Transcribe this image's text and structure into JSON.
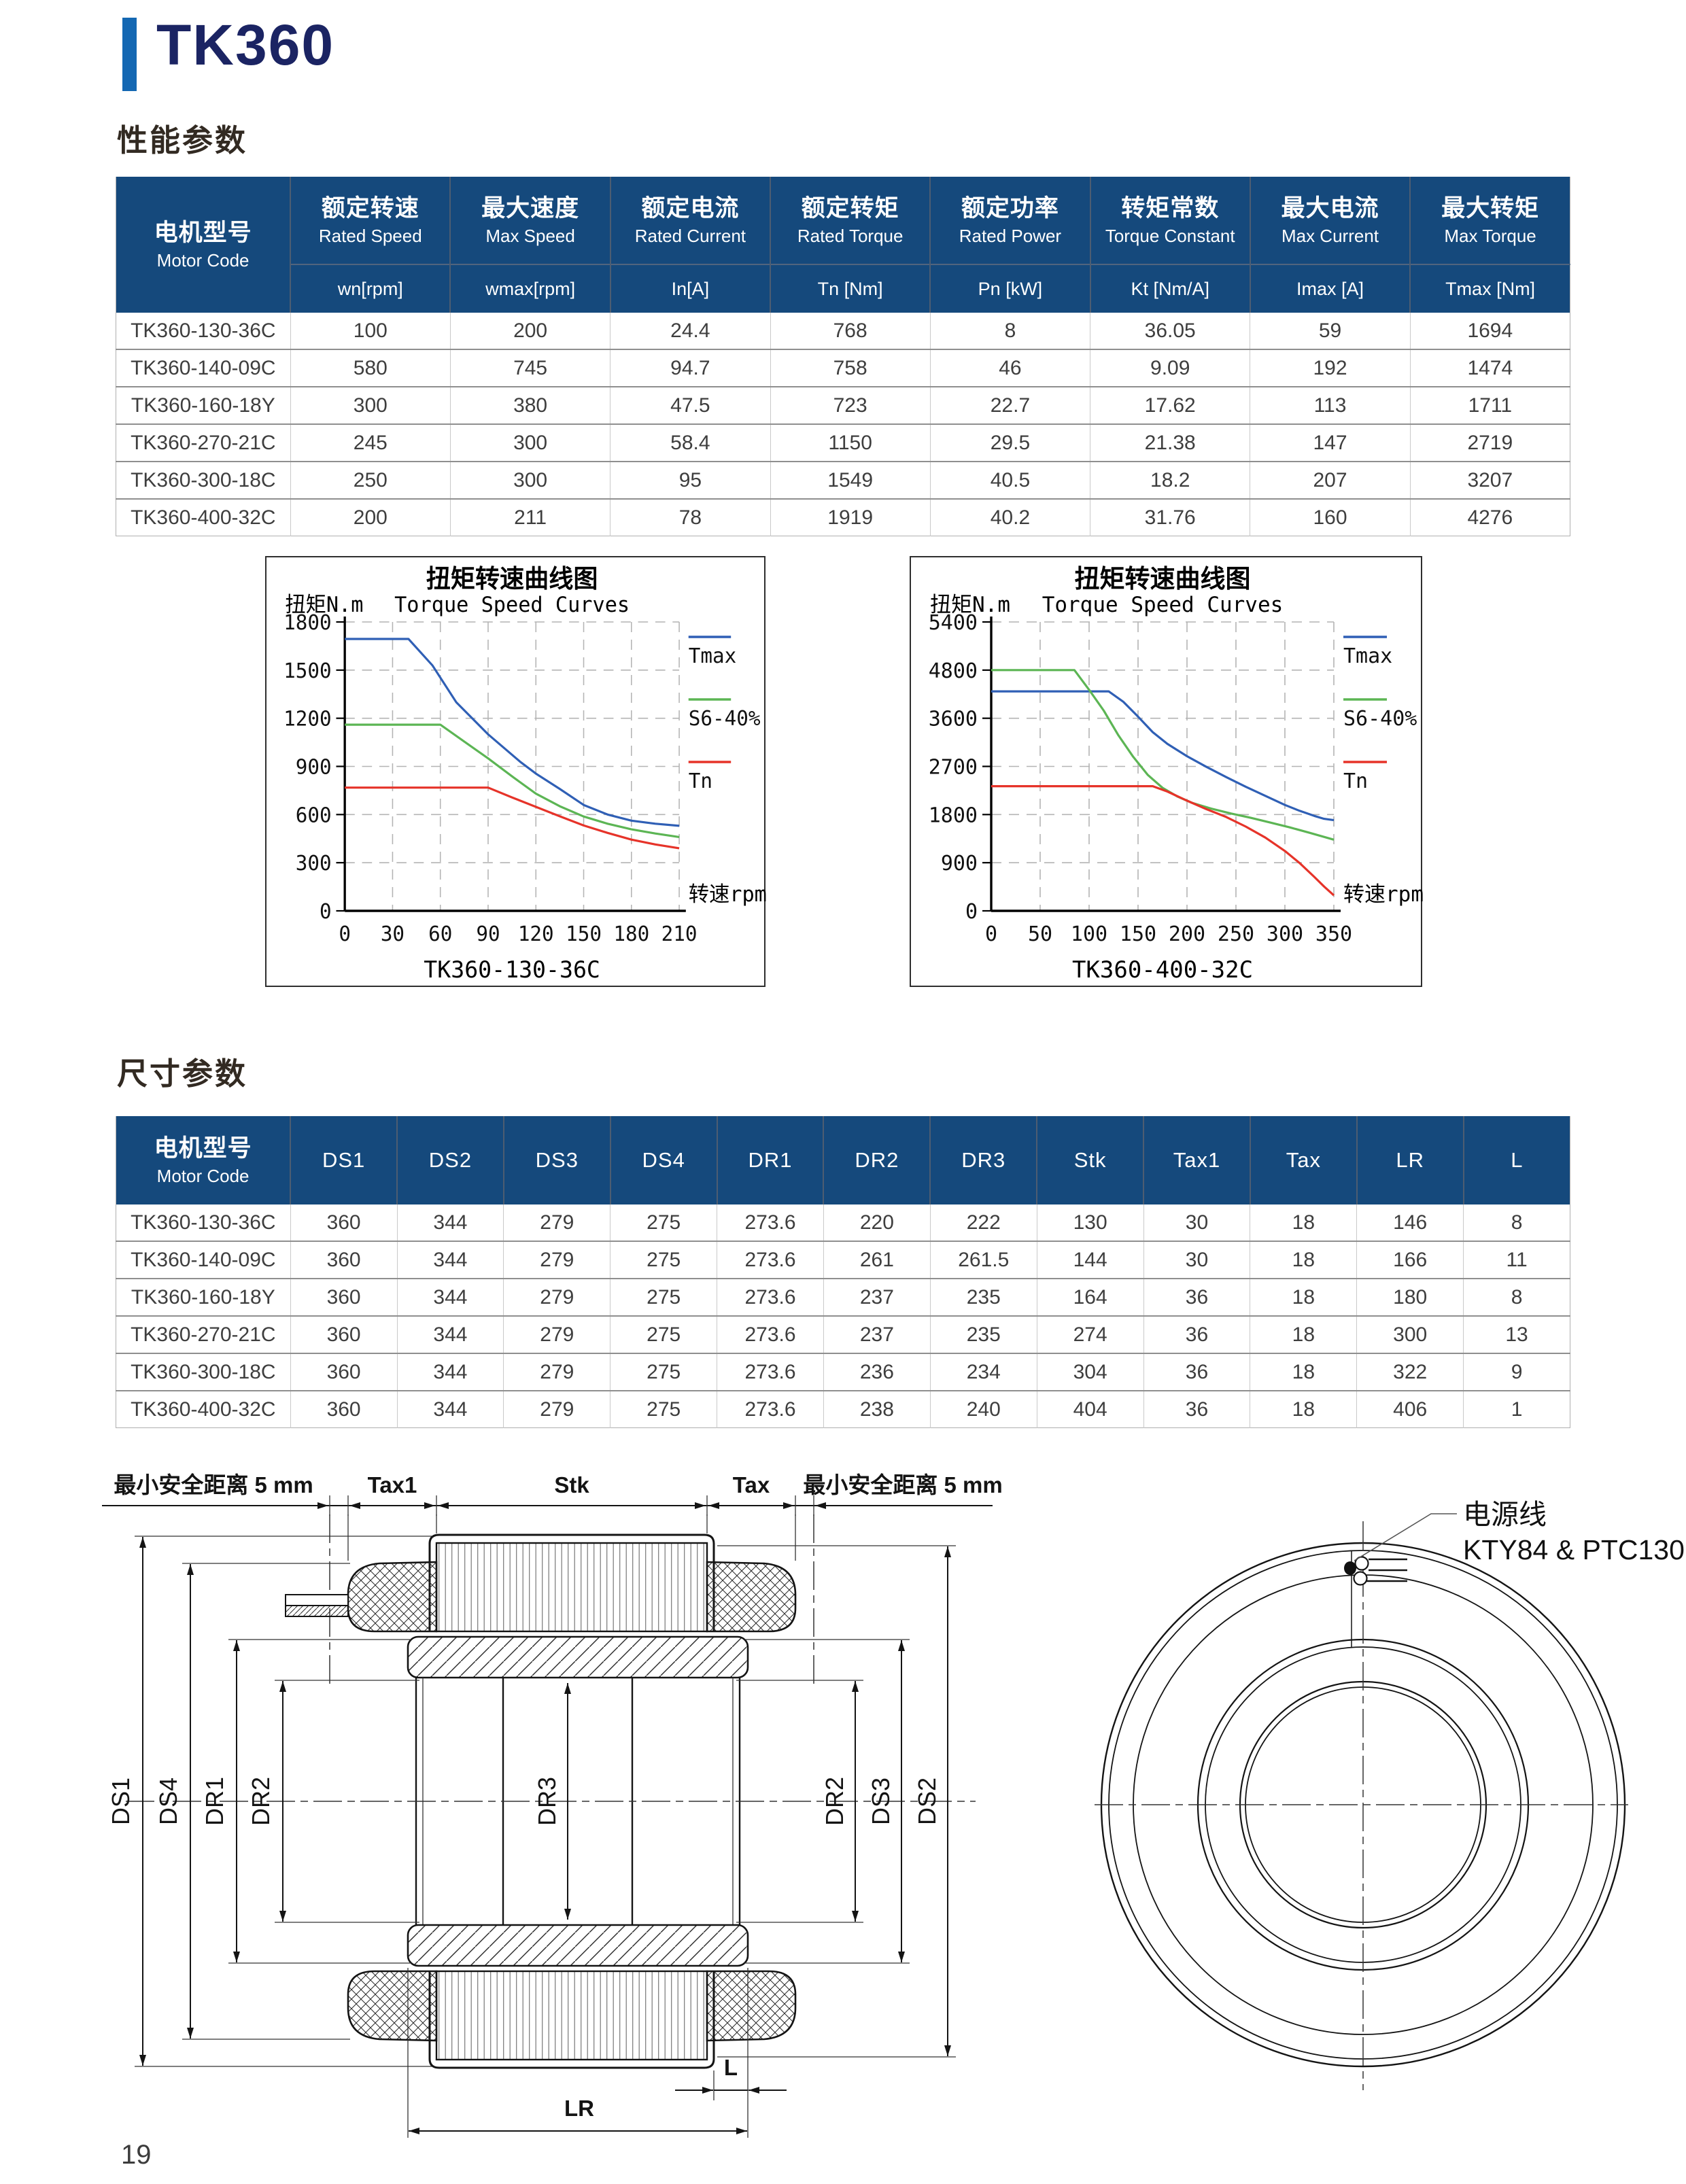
{
  "page": {
    "title": "TK360",
    "page_number": "19",
    "accent_color": "#1468b3",
    "header_bg": "#15497c",
    "sections": {
      "performance": "性能参数",
      "dimensions": "尺寸参数"
    }
  },
  "perf_table": {
    "motor_header": {
      "zh": "电机型号",
      "en": "Motor Code"
    },
    "cols": [
      {
        "zh": "额定转速",
        "en": "Rated Speed",
        "unit": "wn[rpm]"
      },
      {
        "zh": "最大速度",
        "en": "Max Speed",
        "unit": "wmax[rpm]"
      },
      {
        "zh": "额定电流",
        "en": "Rated Current",
        "unit": "In[A]"
      },
      {
        "zh": "额定转矩",
        "en": "Rated Torque",
        "unit": "Tn [Nm]"
      },
      {
        "zh": "额定功率",
        "en": "Rated Power",
        "unit": "Pn [kW]"
      },
      {
        "zh": "转矩常数",
        "en": "Torque Constant",
        "unit": "Kt [Nm/A]"
      },
      {
        "zh": "最大电流",
        "en": "Max Current",
        "unit": "Imax [A]"
      },
      {
        "zh": "最大转矩",
        "en": "Max Torque",
        "unit": "Tmax [Nm]"
      }
    ],
    "rows": [
      [
        "TK360-130-36C",
        "100",
        "200",
        "24.4",
        "768",
        "8",
        "36.05",
        "59",
        "1694"
      ],
      [
        "TK360-140-09C",
        "580",
        "745",
        "94.7",
        "758",
        "46",
        "9.09",
        "192",
        "1474"
      ],
      [
        "TK360-160-18Y",
        "300",
        "380",
        "47.5",
        "723",
        "22.7",
        "17.62",
        "113",
        "1711"
      ],
      [
        "TK360-270-21C",
        "245",
        "300",
        "58.4",
        "1150",
        "29.5",
        "21.38",
        "147",
        "2719"
      ],
      [
        "TK360-300-18C",
        "250",
        "300",
        "95",
        "1549",
        "40.5",
        "18.2",
        "207",
        "3207"
      ],
      [
        "TK360-400-32C",
        "200",
        "211",
        "78",
        "1919",
        "40.2",
        "31.76",
        "160",
        "4276"
      ]
    ]
  },
  "dim_table": {
    "motor_header": {
      "zh": "电机型号",
      "en": "Motor Code"
    },
    "cols": [
      "DS1",
      "DS2",
      "DS3",
      "DS4",
      "DR1",
      "DR2",
      "DR3",
      "Stk",
      "Tax1",
      "Tax",
      "LR",
      "L"
    ],
    "rows": [
      [
        "TK360-130-36C",
        "360",
        "344",
        "279",
        "275",
        "273.6",
        "220",
        "222",
        "130",
        "30",
        "18",
        "146",
        "8"
      ],
      [
        "TK360-140-09C",
        "360",
        "344",
        "279",
        "275",
        "273.6",
        "261",
        "261.5",
        "144",
        "30",
        "18",
        "166",
        "11"
      ],
      [
        "TK360-160-18Y",
        "360",
        "344",
        "279",
        "275",
        "273.6",
        "237",
        "235",
        "164",
        "36",
        "18",
        "180",
        "8"
      ],
      [
        "TK360-270-21C",
        "360",
        "344",
        "279",
        "275",
        "273.6",
        "237",
        "235",
        "274",
        "36",
        "18",
        "300",
        "13"
      ],
      [
        "TK360-300-18C",
        "360",
        "344",
        "279",
        "275",
        "273.6",
        "236",
        "234",
        "304",
        "36",
        "18",
        "322",
        "9"
      ],
      [
        "TK360-400-32C",
        "360",
        "344",
        "279",
        "275",
        "273.6",
        "238",
        "240",
        "404",
        "36",
        "18",
        "406",
        "1"
      ]
    ]
  },
  "chart_data": [
    {
      "type": "line",
      "title": "扭矩转速曲线图",
      "subtitle": "Torque Speed Curves",
      "ylabel": "扭矩N.m",
      "xlabel": "转速rpm",
      "caption": "TK360-130-36C",
      "legend_position": "right",
      "grid": true,
      "x_ticks": [
        0,
        30,
        60,
        90,
        120,
        150,
        180,
        210
      ],
      "y_ticks": [
        0,
        300,
        600,
        900,
        1200,
        1500,
        1800
      ],
      "ylim": [
        0,
        1800
      ],
      "series": [
        {
          "name": "Tmax",
          "color": "#2f5fb5",
          "points": [
            [
              0,
              1694
            ],
            [
              40,
              1694
            ],
            [
              55,
              1530
            ],
            [
              70,
              1300
            ],
            [
              90,
              1100
            ],
            [
              110,
              930
            ],
            [
              120,
              855
            ],
            [
              135,
              760
            ],
            [
              150,
              660
            ],
            [
              165,
              600
            ],
            [
              180,
              562
            ],
            [
              195,
              543
            ],
            [
              210,
              530
            ]
          ]
        },
        {
          "name": "S6-40%",
          "color": "#5cb554",
          "points": [
            [
              0,
              1160
            ],
            [
              60,
              1160
            ],
            [
              75,
              1055
            ],
            [
              90,
              950
            ],
            [
              105,
              838
            ],
            [
              120,
              730
            ],
            [
              135,
              652
            ],
            [
              150,
              588
            ],
            [
              165,
              543
            ],
            [
              180,
              508
            ],
            [
              195,
              482
            ],
            [
              210,
              460
            ]
          ]
        },
        {
          "name": "Tn",
          "color": "#e63329",
          "points": [
            [
              0,
              768
            ],
            [
              90,
              768
            ],
            [
              105,
              707
            ],
            [
              120,
              648
            ],
            [
              135,
              589
            ],
            [
              150,
              532
            ],
            [
              165,
              486
            ],
            [
              180,
              444
            ],
            [
              195,
              414
            ],
            [
              210,
              390
            ]
          ]
        }
      ]
    },
    {
      "type": "line",
      "title": "扭矩转速曲线图",
      "subtitle": "Torque Speed Curves",
      "ylabel": "扭矩N.m",
      "xlabel": "转速rpm",
      "caption": "TK360-400-32C",
      "legend_position": "right",
      "grid": true,
      "x_ticks": [
        0,
        50,
        100,
        150,
        200,
        250,
        300,
        350
      ],
      "y_ticks": [
        0,
        900,
        1800,
        2700,
        3600,
        4800,
        5400
      ],
      "ylim": [
        0,
        5400
      ],
      "series": [
        {
          "name": "Tmax",
          "color": "#2f5fb5",
          "points": [
            [
              0,
              4270
            ],
            [
              120,
              4270
            ],
            [
              135,
              4010
            ],
            [
              150,
              3640
            ],
            [
              165,
              3340
            ],
            [
              180,
              3120
            ],
            [
              200,
              2890
            ],
            [
              220,
              2690
            ],
            [
              240,
              2500
            ],
            [
              260,
              2320
            ],
            [
              280,
              2150
            ],
            [
              300,
              1980
            ],
            [
              315,
              1870
            ],
            [
              330,
              1775
            ],
            [
              340,
              1720
            ],
            [
              350,
              1695
            ]
          ]
        },
        {
          "name": "S6-40%",
          "color": "#5cb554",
          "points": [
            [
              0,
              4800
            ],
            [
              85,
              4800
            ],
            [
              100,
              4310
            ],
            [
              115,
              3790
            ],
            [
              130,
              3280
            ],
            [
              145,
              2880
            ],
            [
              160,
              2540
            ],
            [
              175,
              2300
            ],
            [
              190,
              2140
            ],
            [
              205,
              2020
            ],
            [
              225,
              1910
            ],
            [
              245,
              1820
            ],
            [
              265,
              1740
            ],
            [
              285,
              1650
            ],
            [
              305,
              1560
            ],
            [
              325,
              1460
            ],
            [
              350,
              1330
            ]
          ]
        },
        {
          "name": "Tn",
          "color": "#e63329",
          "points": [
            [
              0,
              2330
            ],
            [
              165,
              2330
            ],
            [
              180,
              2230
            ],
            [
              200,
              2060
            ],
            [
              220,
              1900
            ],
            [
              240,
              1755
            ],
            [
              260,
              1575
            ],
            [
              280,
              1370
            ],
            [
              300,
              1120
            ],
            [
              315,
              895
            ],
            [
              330,
              635
            ],
            [
              340,
              455
            ],
            [
              350,
              290
            ]
          ]
        }
      ]
    }
  ],
  "drawing": {
    "top_dims": [
      "最小安全距离 5 mm",
      "Tax1",
      "Stk",
      "Tax",
      "最小安全距离 5 mm"
    ],
    "left_dims": [
      "DS1",
      "DS4",
      "DR1",
      "DR2"
    ],
    "center_dim": "DR3",
    "right_dims": [
      "DR2",
      "DS3",
      "DS2"
    ],
    "bottom_dims": [
      "L",
      "LR"
    ],
    "cable_label": [
      "电源线",
      "KTY84 & PTC130"
    ]
  }
}
